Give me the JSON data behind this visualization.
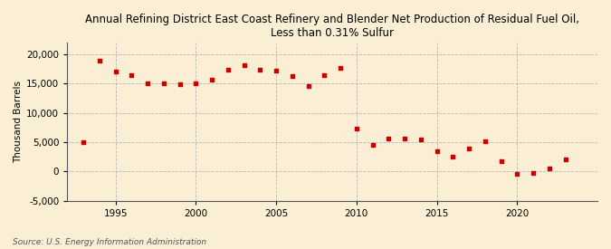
{
  "title": "Annual Refining District East Coast Refinery and Blender Net Production of Residual Fuel Oil,\nLess than 0.31% Sulfur",
  "ylabel": "Thousand Barrels",
  "source": "Source: U.S. Energy Information Administration",
  "background_color": "#faefd4",
  "marker_color": "#cc0000",
  "years": [
    1993,
    1994,
    1995,
    1996,
    1997,
    1998,
    1999,
    2000,
    2001,
    2002,
    2003,
    2004,
    2005,
    2006,
    2007,
    2008,
    2009,
    2010,
    2011,
    2012,
    2013,
    2014,
    2015,
    2016,
    2017,
    2018,
    2019,
    2020,
    2021,
    2022,
    2023
  ],
  "values": [
    5000,
    18900,
    17100,
    16500,
    15000,
    15000,
    14900,
    15100,
    15700,
    17400,
    18200,
    17300,
    17200,
    16300,
    14500,
    16400,
    17700,
    7300,
    4600,
    5600,
    5600,
    5500,
    3500,
    2500,
    3900,
    5100,
    1700,
    -400,
    -300,
    500,
    2100
  ],
  "ylim": [
    -5000,
    22000
  ],
  "yticks": [
    -5000,
    0,
    5000,
    10000,
    15000,
    20000
  ],
  "xlim": [
    1992,
    2025
  ],
  "xticks": [
    1995,
    2000,
    2005,
    2010,
    2015,
    2020
  ],
  "title_fontsize": 8.5,
  "ylabel_fontsize": 7.5,
  "tick_fontsize": 7.5,
  "source_fontsize": 6.5
}
